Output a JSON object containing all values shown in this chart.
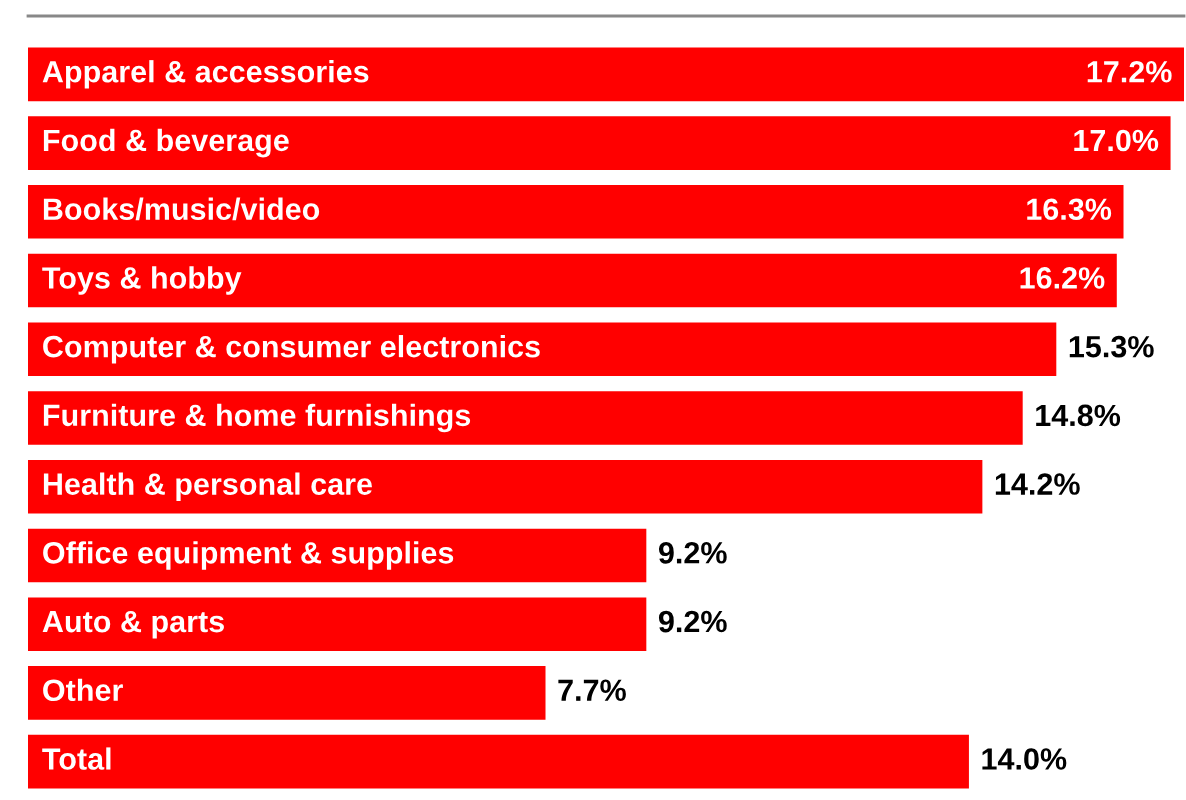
{
  "chart_data": {
    "type": "bar",
    "orientation": "horizontal",
    "categories": [
      "Apparel & accessories",
      "Food & beverage",
      "Books/music/video",
      "Toys & hobby",
      "Computer & consumer electronics",
      "Furniture & home furnishings",
      "Health & personal care",
      "Office equipment & supplies",
      "Auto & parts",
      "Other",
      "Total"
    ],
    "values": [
      17.2,
      17.0,
      16.3,
      16.2,
      15.3,
      14.8,
      14.2,
      9.2,
      9.2,
      7.7,
      14.0
    ],
    "value_labels": [
      "17.2%",
      "17.0%",
      "16.3%",
      "16.2%",
      "15.3%",
      "14.8%",
      "14.2%",
      "9.2%",
      "9.2%",
      "7.7%",
      "14.0%"
    ],
    "color": "#ff0000"
  }
}
